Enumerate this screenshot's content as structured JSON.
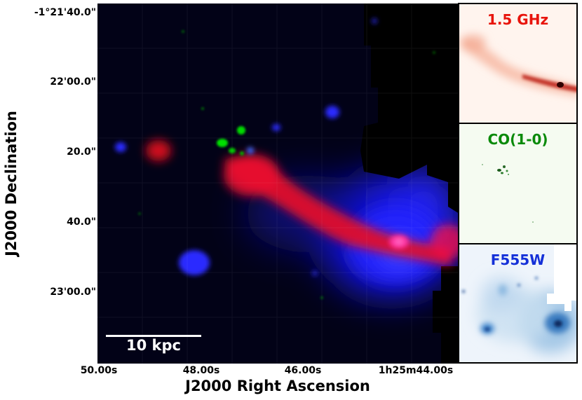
{
  "axes": {
    "x_title": "J2000 Right Ascension",
    "y_title": "J2000 Declination",
    "dec_ticks": [
      "-1°21'40.0\"",
      "22'00.0\"",
      "20.0\"",
      "40.0\"",
      "23'00.0\""
    ],
    "ra_ticks": [
      "50.00s",
      "48.00s",
      "46.00s",
      "1h25m44.00s"
    ]
  },
  "scalebar": {
    "label": "10 kpc"
  },
  "insets": [
    {
      "label": "1.5 GHz",
      "color": "#e8140c"
    },
    {
      "label": "CO(1-0)",
      "color": "#0a8a0a"
    },
    {
      "label": "F555W",
      "color": "#1430d8"
    }
  ],
  "colors": {
    "radio": "#ff0000",
    "co": "#00c800",
    "optical": "#0000ff",
    "background": "#000000"
  }
}
